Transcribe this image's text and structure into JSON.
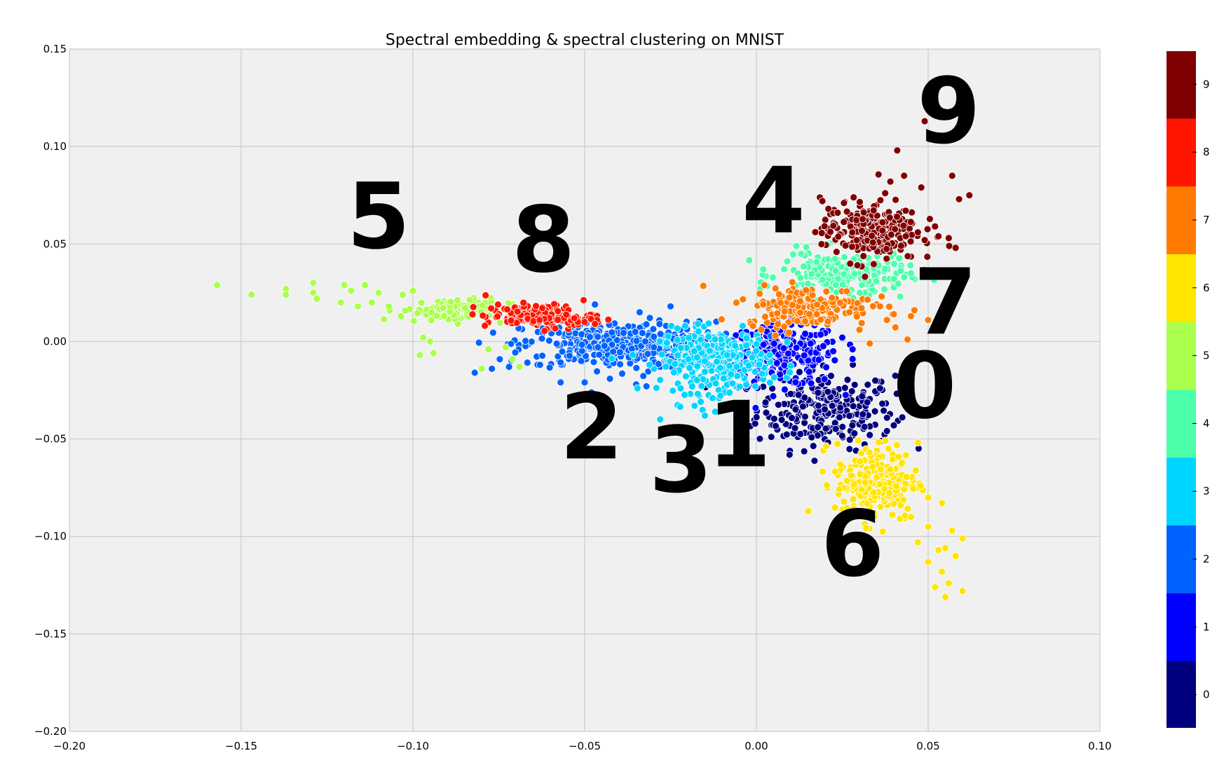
{
  "chart_data": {
    "type": "scatter",
    "title": "Spectral embedding & spectral clustering on MNIST",
    "xlabel": "",
    "ylabel": "",
    "xlim": [
      -0.2,
      0.1
    ],
    "ylim": [
      -0.2,
      0.15
    ],
    "x_ticks": [
      "−0.20",
      "−0.15",
      "−0.10",
      "−0.05",
      "0.00",
      "0.05",
      "0.10"
    ],
    "y_ticks": [
      "−0.20",
      "−0.15",
      "−0.10",
      "−0.05",
      "0.00",
      "0.05",
      "0.10",
      "0.15"
    ],
    "grid": true,
    "background": "#f0f0f0",
    "colorbar": {
      "min": -0.5,
      "max": 9.5,
      "labels": [
        "0",
        "1",
        "2",
        "3",
        "4",
        "5",
        "6",
        "7",
        "8",
        "9"
      ],
      "colors": [
        "#00007f",
        "#0000ff",
        "#0063ff",
        "#00d5ff",
        "#4dffaa",
        "#aaff4d",
        "#ffe500",
        "#ff7a00",
        "#ff1500",
        "#7f0000"
      ]
    },
    "annotations": [
      {
        "text": "5",
        "x": -0.11,
        "y": 0.048
      },
      {
        "text": "8",
        "x": -0.062,
        "y": 0.036
      },
      {
        "text": "4",
        "x": 0.005,
        "y": 0.056
      },
      {
        "text": "9",
        "x": 0.056,
        "y": 0.102
      },
      {
        "text": "7",
        "x": 0.055,
        "y": 0.004
      },
      {
        "text": "0",
        "x": 0.049,
        "y": -0.039
      },
      {
        "text": "2",
        "x": -0.048,
        "y": -0.06
      },
      {
        "text": "3",
        "x": -0.022,
        "y": -0.077
      },
      {
        "text": "1",
        "x": -0.005,
        "y": -0.064
      },
      {
        "text": "6",
        "x": 0.028,
        "y": -0.12
      }
    ],
    "series": [
      {
        "name": "0",
        "cluster": 0,
        "center": [
          0.02,
          -0.035
        ],
        "spread": [
          0.01,
          0.01
        ],
        "count": 260,
        "outliers": [
          [
            0.036,
            -0.024
          ],
          [
            0.04,
            -0.043
          ],
          [
            0.033,
            -0.048
          ],
          [
            0.029,
            -0.056
          ],
          [
            0.038,
            -0.046
          ]
        ]
      },
      {
        "name": "1",
        "cluster": 1,
        "center": [
          0.008,
          -0.007
        ],
        "spread": [
          0.008,
          0.008
        ],
        "count": 250,
        "outliers": [
          [
            0.028,
            -0.009
          ],
          [
            0.025,
            0.002
          ],
          [
            0.028,
            -0.004
          ]
        ]
      },
      {
        "name": "2",
        "cluster": 2,
        "center": [
          -0.04,
          -0.002
        ],
        "spread": [
          0.014,
          0.006
        ],
        "count": 420,
        "outliers": [
          [
            -0.077,
            -0.014
          ],
          [
            -0.082,
            -0.016
          ],
          [
            -0.072,
            -0.013
          ],
          [
            -0.057,
            -0.021
          ],
          [
            -0.05,
            -0.021
          ],
          [
            -0.047,
            0.019
          ],
          [
            -0.025,
            0.018
          ],
          [
            -0.034,
            0.015
          ],
          [
            -0.032,
            -0.023
          ],
          [
            -0.035,
            -0.022
          ],
          [
            -0.063,
            -0.012
          ]
        ]
      },
      {
        "name": "3",
        "cluster": 3,
        "center": [
          -0.012,
          -0.01
        ],
        "spread": [
          0.008,
          0.008
        ],
        "count": 280,
        "outliers": [
          [
            -0.028,
            -0.04
          ],
          [
            -0.015,
            -0.038
          ],
          [
            -0.018,
            -0.033
          ],
          [
            -0.017,
            0.009
          ],
          [
            -0.004,
            0.008
          ],
          [
            -0.012,
            -0.036
          ]
        ]
      },
      {
        "name": "4",
        "cluster": 4,
        "center": [
          0.025,
          0.034
        ],
        "spread": [
          0.009,
          0.006
        ],
        "count": 230,
        "outliers": [
          [
            0.013,
            0.045
          ],
          [
            0.002,
            0.037
          ],
          [
            0.04,
            0.032
          ],
          [
            0.045,
            0.035
          ],
          [
            0.043,
            0.033
          ]
        ]
      },
      {
        "name": "5",
        "cluster": 5,
        "center": [
          -0.088,
          0.016
        ],
        "spread": [
          0.008,
          0.003
        ],
        "count": 110,
        "outliers": [
          [
            -0.157,
            0.029
          ],
          [
            -0.147,
            0.024
          ],
          [
            -0.137,
            0.027
          ],
          [
            -0.137,
            0.024
          ],
          [
            -0.129,
            0.03
          ],
          [
            -0.129,
            0.025
          ],
          [
            -0.128,
            0.022
          ],
          [
            -0.121,
            0.02
          ],
          [
            -0.12,
            0.029
          ],
          [
            -0.118,
            0.026
          ],
          [
            -0.116,
            0.018
          ],
          [
            -0.114,
            0.029
          ],
          [
            -0.112,
            0.02
          ],
          [
            -0.11,
            0.025
          ],
          [
            -0.107,
            0.018
          ],
          [
            -0.103,
            0.024
          ],
          [
            -0.1,
            0.026
          ],
          [
            -0.097,
            0.002
          ],
          [
            -0.095,
            0.0
          ],
          [
            -0.094,
            -0.006
          ],
          [
            -0.098,
            -0.007
          ],
          [
            -0.08,
            -0.014
          ],
          [
            -0.078,
            -0.004
          ],
          [
            -0.069,
            -0.013
          ],
          [
            -0.073,
            -0.003
          ],
          [
            -0.071,
            -0.009
          ]
        ]
      },
      {
        "name": "6",
        "cluster": 6,
        "center": [
          0.035,
          -0.072
        ],
        "spread": [
          0.006,
          0.01
        ],
        "count": 230,
        "outliers": [
          [
            0.05,
            -0.08
          ],
          [
            0.054,
            -0.083
          ],
          [
            0.05,
            -0.095
          ],
          [
            0.057,
            -0.097
          ],
          [
            0.06,
            -0.101
          ],
          [
            0.053,
            -0.107
          ],
          [
            0.055,
            -0.106
          ],
          [
            0.05,
            -0.113
          ],
          [
            0.054,
            -0.118
          ],
          [
            0.052,
            -0.126
          ],
          [
            0.055,
            -0.131
          ],
          [
            0.056,
            -0.124
          ],
          [
            0.06,
            -0.128
          ],
          [
            0.058,
            -0.11
          ],
          [
            0.045,
            -0.09
          ],
          [
            0.047,
            -0.103
          ]
        ]
      },
      {
        "name": "7",
        "cluster": 7,
        "center": [
          0.015,
          0.018
        ],
        "spread": [
          0.009,
          0.005
        ],
        "count": 200,
        "outliers": [
          [
            0.002,
            0.019
          ],
          [
            -0.001,
            0.008
          ],
          [
            0.036,
            0.018
          ],
          [
            0.04,
            0.014
          ],
          [
            0.038,
            0.011
          ],
          [
            0.045,
            0.013
          ],
          [
            0.044,
            0.001
          ],
          [
            0.046,
            0.016
          ],
          [
            0.05,
            0.011
          ],
          [
            0.03,
            0.006
          ],
          [
            0.033,
            -0.001
          ]
        ]
      },
      {
        "name": "8",
        "cluster": 8,
        "center": [
          -0.063,
          0.013
        ],
        "spread": [
          0.008,
          0.003
        ],
        "count": 150,
        "outliers": [
          [
            -0.047,
            0.009
          ],
          [
            -0.05,
            0.01
          ]
        ]
      },
      {
        "name": "9",
        "cluster": 9,
        "center": [
          0.033,
          0.057
        ],
        "spread": [
          0.007,
          0.008
        ],
        "count": 240,
        "outliers": [
          [
            0.049,
            0.113
          ],
          [
            0.041,
            0.098
          ],
          [
            0.039,
            0.082
          ],
          [
            0.043,
            0.085
          ],
          [
            0.048,
            0.079
          ],
          [
            0.057,
            0.085
          ],
          [
            0.059,
            0.073
          ],
          [
            0.062,
            0.075
          ],
          [
            0.052,
            0.059
          ],
          [
            0.053,
            0.054
          ],
          [
            0.056,
            0.053
          ],
          [
            0.058,
            0.048
          ],
          [
            0.049,
            0.052
          ],
          [
            0.047,
            0.056
          ]
        ]
      }
    ]
  }
}
